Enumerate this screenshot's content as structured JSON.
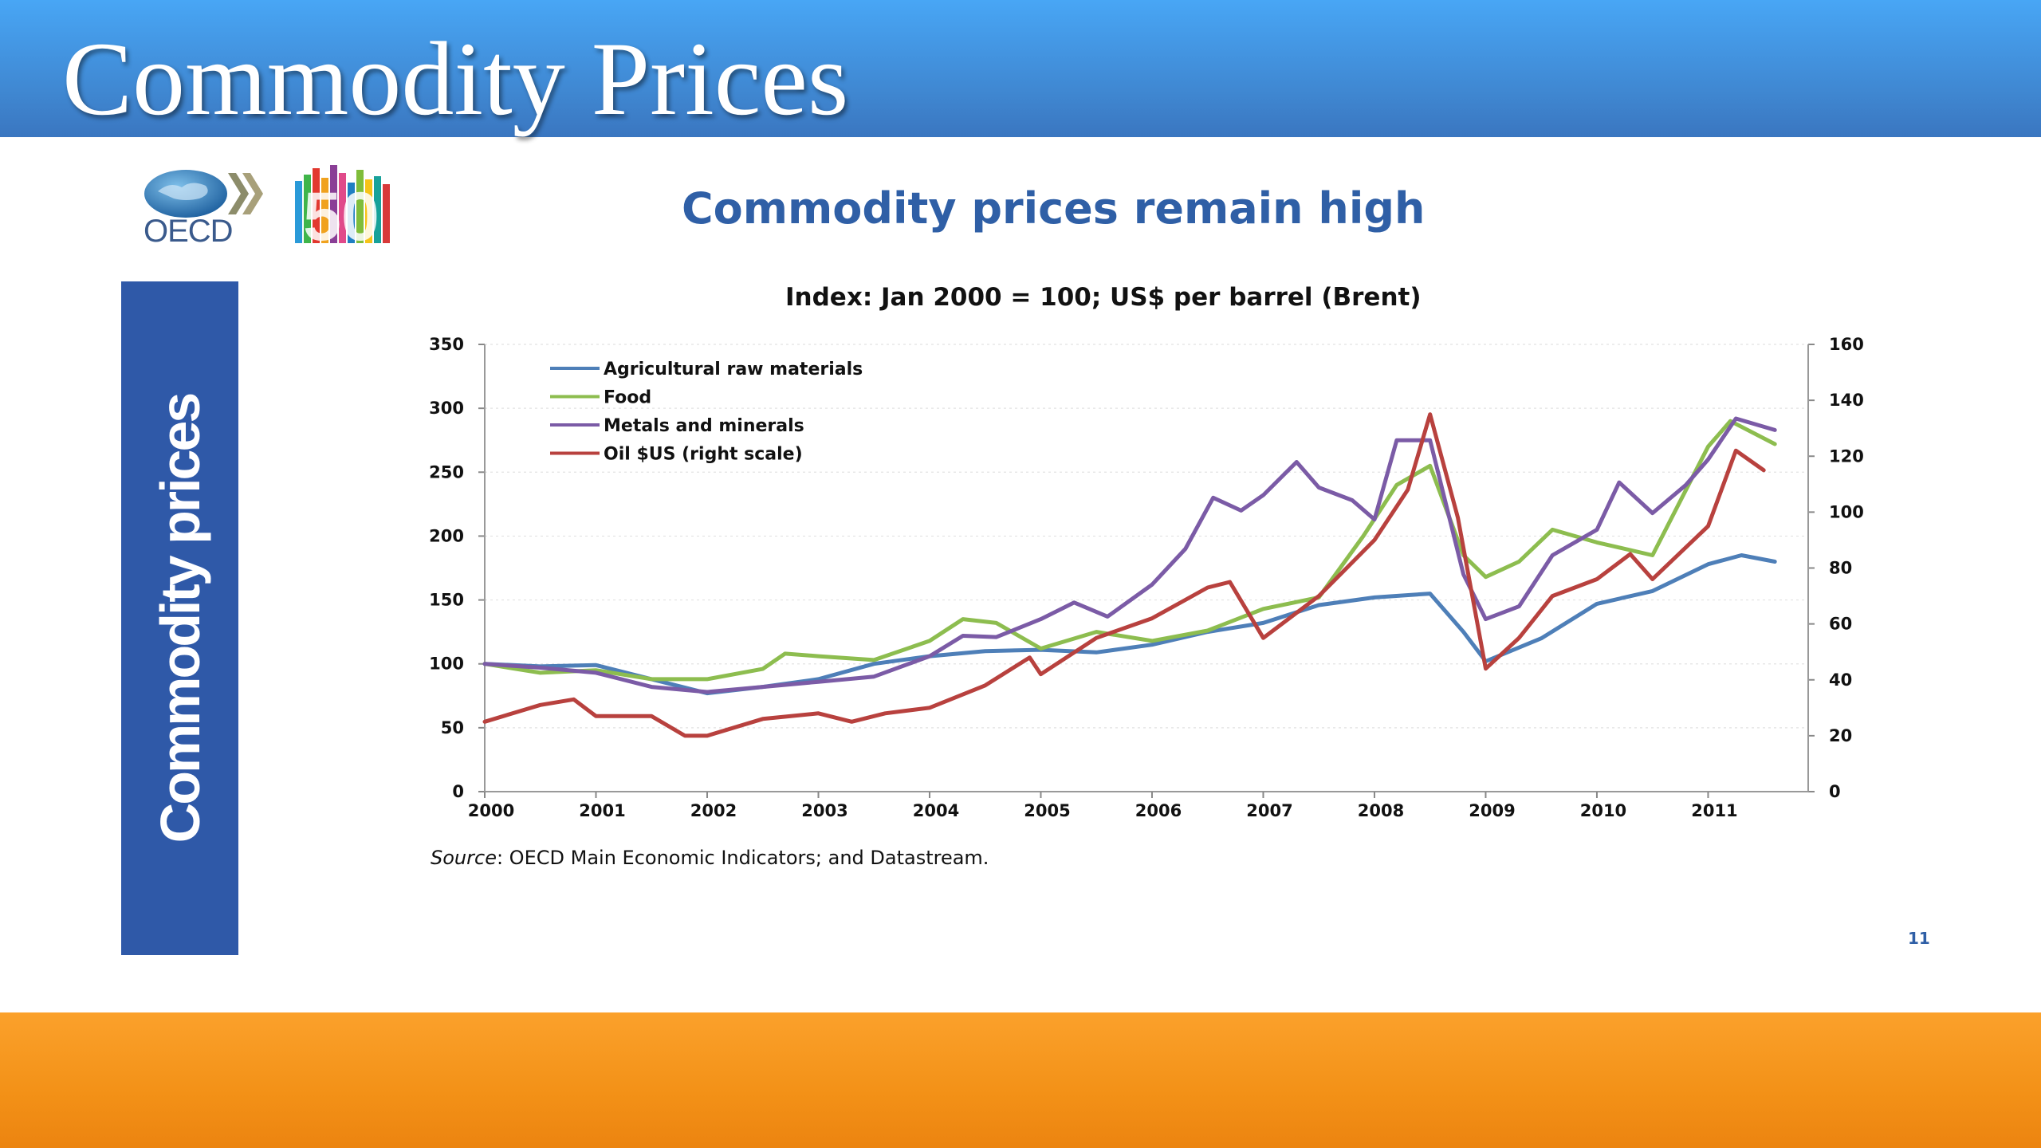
{
  "slide": {
    "title": "Commodity Prices",
    "heading": "Commodity prices remain high",
    "side_label": "Commodity prices",
    "logo_text": "OECD",
    "logo_badge": "50",
    "source_label": "Source",
    "source_text": ": OECD Main Economic Indicators; and Datastream.",
    "page_number": "11"
  },
  "colors": {
    "header": "#4399e8",
    "footer": "#f39117",
    "side_panel": "#2f59a8",
    "heading": "#2f5fa6"
  },
  "chart_data": {
    "type": "line",
    "title": "",
    "subtitle": "Index: Jan 2000 = 100; US$ per barrel (Brent)",
    "xlabel": "",
    "ylabel": "",
    "x_ticks": [
      "2000",
      "2001",
      "2002",
      "2003",
      "2004",
      "2005",
      "2006",
      "2007",
      "2008",
      "2009",
      "2010",
      "2011"
    ],
    "xlim": [
      2000,
      2011.9
    ],
    "ylim_left": [
      0,
      350
    ],
    "ylim_right": [
      0,
      160
    ],
    "left_ticks": [
      0,
      50,
      100,
      150,
      200,
      250,
      300,
      350
    ],
    "right_ticks": [
      0,
      20,
      40,
      60,
      80,
      100,
      120,
      140,
      160
    ],
    "grid": true,
    "legend_position": "top-left",
    "series": [
      {
        "name": "Agricultural raw materials",
        "axis": "left",
        "color": "#4e7fb8",
        "points": [
          [
            2000,
            100
          ],
          [
            2000.5,
            98
          ],
          [
            2001,
            99
          ],
          [
            2001.5,
            88
          ],
          [
            2002,
            77
          ],
          [
            2002.5,
            82
          ],
          [
            2003,
            88
          ],
          [
            2003.5,
            100
          ],
          [
            2004,
            106
          ],
          [
            2004.5,
            110
          ],
          [
            2005,
            111
          ],
          [
            2005.5,
            109
          ],
          [
            2006,
            115
          ],
          [
            2006.5,
            125
          ],
          [
            2007,
            132
          ],
          [
            2007.5,
            146
          ],
          [
            2008,
            152
          ],
          [
            2008.5,
            155
          ],
          [
            2008.8,
            125
          ],
          [
            2009,
            102
          ],
          [
            2009.5,
            120
          ],
          [
            2010,
            147
          ],
          [
            2010.5,
            157
          ],
          [
            2011,
            178
          ],
          [
            2011.3,
            185
          ],
          [
            2011.6,
            180
          ]
        ]
      },
      {
        "name": "Food",
        "axis": "left",
        "color": "#8dbd4f",
        "points": [
          [
            2000,
            100
          ],
          [
            2000.5,
            93
          ],
          [
            2001,
            95
          ],
          [
            2001.5,
            88
          ],
          [
            2002,
            88
          ],
          [
            2002.5,
            96
          ],
          [
            2002.7,
            108
          ],
          [
            2003,
            106
          ],
          [
            2003.5,
            103
          ],
          [
            2004,
            118
          ],
          [
            2004.3,
            135
          ],
          [
            2004.6,
            132
          ],
          [
            2005,
            112
          ],
          [
            2005.5,
            125
          ],
          [
            2006,
            118
          ],
          [
            2006.5,
            126
          ],
          [
            2007,
            143
          ],
          [
            2007.5,
            152
          ],
          [
            2007.9,
            200
          ],
          [
            2008.2,
            240
          ],
          [
            2008.5,
            255
          ],
          [
            2008.8,
            185
          ],
          [
            2009,
            168
          ],
          [
            2009.3,
            180
          ],
          [
            2009.6,
            205
          ],
          [
            2010,
            195
          ],
          [
            2010.5,
            185
          ],
          [
            2011,
            270
          ],
          [
            2011.2,
            290
          ],
          [
            2011.6,
            272
          ]
        ]
      },
      {
        "name": "Metals and minerals",
        "axis": "left",
        "color": "#7b5ba6",
        "points": [
          [
            2000,
            100
          ],
          [
            2000.5,
            97
          ],
          [
            2001,
            93
          ],
          [
            2001.5,
            82
          ],
          [
            2002,
            78
          ],
          [
            2002.5,
            82
          ],
          [
            2003,
            86
          ],
          [
            2003.5,
            90
          ],
          [
            2004,
            106
          ],
          [
            2004.3,
            122
          ],
          [
            2004.6,
            121
          ],
          [
            2005,
            135
          ],
          [
            2005.3,
            148
          ],
          [
            2005.6,
            137
          ],
          [
            2006,
            162
          ],
          [
            2006.3,
            190
          ],
          [
            2006.55,
            230
          ],
          [
            2006.8,
            220
          ],
          [
            2007,
            232
          ],
          [
            2007.3,
            258
          ],
          [
            2007.5,
            238
          ],
          [
            2007.8,
            228
          ],
          [
            2008,
            213
          ],
          [
            2008.2,
            275
          ],
          [
            2008.5,
            275
          ],
          [
            2008.8,
            170
          ],
          [
            2009,
            135
          ],
          [
            2009.3,
            145
          ],
          [
            2009.6,
            185
          ],
          [
            2010,
            205
          ],
          [
            2010.2,
            242
          ],
          [
            2010.5,
            218
          ],
          [
            2010.8,
            240
          ],
          [
            2011,
            260
          ],
          [
            2011.25,
            292
          ],
          [
            2011.6,
            283
          ]
        ]
      },
      {
        "name": "Oil $US (right scale)",
        "axis": "right",
        "color": "#b8413e",
        "points": [
          [
            2000,
            25
          ],
          [
            2000.5,
            31
          ],
          [
            2000.8,
            33
          ],
          [
            2001,
            27
          ],
          [
            2001.5,
            27
          ],
          [
            2001.8,
            20
          ],
          [
            2002,
            20
          ],
          [
            2002.5,
            26
          ],
          [
            2003,
            28
          ],
          [
            2003.3,
            25
          ],
          [
            2003.6,
            28
          ],
          [
            2004,
            30
          ],
          [
            2004.5,
            38
          ],
          [
            2004.9,
            48
          ],
          [
            2005,
            42
          ],
          [
            2005.5,
            55
          ],
          [
            2006,
            62
          ],
          [
            2006.5,
            73
          ],
          [
            2006.7,
            75
          ],
          [
            2007,
            55
          ],
          [
            2007.5,
            70
          ],
          [
            2008,
            90
          ],
          [
            2008.3,
            108
          ],
          [
            2008.5,
            135
          ],
          [
            2008.75,
            98
          ],
          [
            2009,
            44
          ],
          [
            2009.3,
            55
          ],
          [
            2009.6,
            70
          ],
          [
            2010,
            76
          ],
          [
            2010.3,
            85
          ],
          [
            2010.5,
            76
          ],
          [
            2011,
            95
          ],
          [
            2011.25,
            122
          ],
          [
            2011.5,
            115
          ]
        ]
      }
    ]
  }
}
